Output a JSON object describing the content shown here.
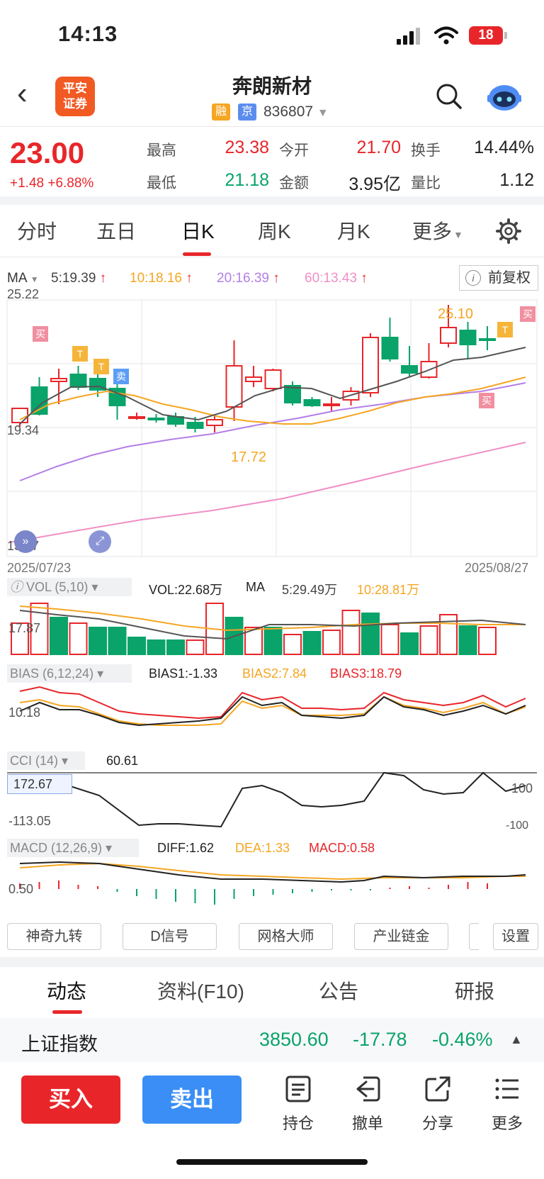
{
  "status_bar": {
    "time": "14:13",
    "battery": "18"
  },
  "header": {
    "logo_text": "平安证券",
    "stock_name": "奔朗新材",
    "tag_margin": "融",
    "tag_exchange": "京",
    "stock_code": "836807"
  },
  "quote": {
    "price": "23.00",
    "change": "+1.48 +6.88%",
    "high_label": "最高",
    "high_value": "23.38",
    "open_label": "今开",
    "open_value": "21.70",
    "turnover_label": "换手",
    "turnover_value": "14.44%",
    "low_label": "最低",
    "low_value": "21.18",
    "amount_label": "金额",
    "amount_value": "3.95亿",
    "volratio_label": "量比",
    "volratio_value": "1.12"
  },
  "kline_tabs": [
    "分时",
    "五日",
    "日K",
    "周K",
    "月K",
    "更多"
  ],
  "active_tab": "日K",
  "ma_bar": {
    "label": "MA",
    "ma5": "5:19.39",
    "ma10": "10:18.16",
    "ma20": "20:16.39",
    "ma60": "60:13.43",
    "adjust_button": "前复权"
  },
  "main_chart": {
    "axis_top": "25.22",
    "axis_mid": "19.34",
    "axis_bottom": "13.47",
    "date_start": "2025/07/23",
    "date_end": "2025/08/27",
    "high_mark": "25.10",
    "low_mark": "17.72",
    "signal_buy": "买",
    "signal_sell": "卖",
    "signal_t": "T"
  },
  "volume": {
    "label": "VOL (5,10)",
    "vol": "VOL:22.68万",
    "ma_label": "MA",
    "ma5": "5:29.49万",
    "ma10": "10:28.81万",
    "axis": "17.87"
  },
  "bias": {
    "label": "BIAS (6,12,24)",
    "b1": "BIAS1:-1.33",
    "b2": "BIAS2:7.84",
    "b3": "BIAS3:18.79",
    "axis": "10.18"
  },
  "cci": {
    "label": "CCI (14)",
    "value": "60.61",
    "axis_top": "172.67",
    "axis_bottom": "-113.05",
    "right_top": "100",
    "right_bottom": "-100"
  },
  "macd": {
    "label": "MACD (12,26,9)",
    "diff": "DIFF:1.62",
    "dea": "DEA:1.33",
    "macd": "MACD:0.58",
    "axis": "0.50"
  },
  "tools": [
    "神奇九转",
    "D信号",
    "网格大师",
    "产业链金",
    "设置"
  ],
  "bottom_tabs": [
    "动态",
    "资料(F10)",
    "公告",
    "研报"
  ],
  "index_bar": {
    "name": "上证指数",
    "value": "3850.60",
    "change": "-17.78",
    "pct": "-0.46%"
  },
  "actions": {
    "buy": "买入",
    "sell": "卖出",
    "hold": "持仓",
    "cancel": "撤单",
    "share": "分享",
    "more": "更多"
  },
  "colors": {
    "up": "#e8262a",
    "down": "#0aa36a",
    "ma5": "#555",
    "ma10": "#f5a623",
    "ma20": "#b47ee8",
    "ma60": "#f08fc6",
    "buy_button": "#e8262a",
    "sell_button": "#3a8ef5"
  }
}
